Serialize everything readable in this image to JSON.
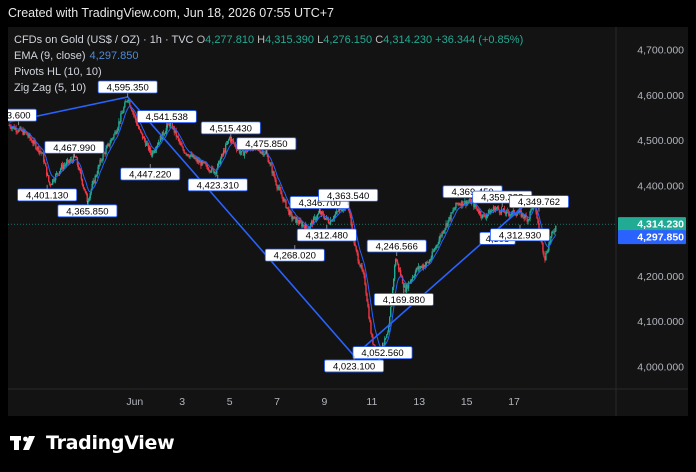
{
  "header": {
    "caption": "Created with TradingView.com, Jun 18, 2026 07:55 UTC+7"
  },
  "legend": {
    "symbol": "CFDs on Gold (US$ / OZ) · 1h · TVC",
    "o_label": "O",
    "o": "4,277.810",
    "h_label": "H",
    "h": "4,315.390",
    "l_label": "L",
    "l": "4,276.150",
    "c_label": "C",
    "c": "4,314.230",
    "change": "+36.344 (+0.85%)",
    "ema_label": "EMA (9, close)",
    "ema_value": "4,297.850",
    "pivots_label": "Pivots HL (10, 10)",
    "zigzag_label": "Zig Zag (5, 10)"
  },
  "brand": {
    "logo_text": "TradingView"
  },
  "colors": {
    "up": "#22ab94",
    "down": "#f23645",
    "ema": "#2962ff",
    "zigzag": "#2962ff",
    "background": "#131313",
    "label_bg": "#ffffff",
    "label_border": "#2962ff"
  },
  "chart_data": {
    "type": "candlestick",
    "ylim": [
      3950,
      4750
    ],
    "x_range_days": [
      -4.35,
      21.3
    ],
    "y_ticks": [
      {
        "value": 4700,
        "label": "4,700.000"
      },
      {
        "value": 4600,
        "label": "4,600.000"
      },
      {
        "value": 4500,
        "label": "4,500.000"
      },
      {
        "value": 4400,
        "label": "4,400.000"
      },
      {
        "value": 4300,
        "label": "4,300.000"
      },
      {
        "value": 4200,
        "label": "4,200.000"
      },
      {
        "value": 4100,
        "label": "4,100.000"
      },
      {
        "value": 4000,
        "label": "4,000.000"
      }
    ],
    "x_ticks": [
      {
        "day": 1,
        "label": "Jun"
      },
      {
        "day": 3,
        "label": "3"
      },
      {
        "day": 5,
        "label": "5"
      },
      {
        "day": 7,
        "label": "7"
      },
      {
        "day": 9,
        "label": "9"
      },
      {
        "day": 11,
        "label": "11"
      },
      {
        "day": 13,
        "label": "13"
      },
      {
        "day": 15,
        "label": "15"
      },
      {
        "day": 17,
        "label": "17"
      }
    ],
    "price_labels": [
      {
        "label": "4,314.230",
        "value": 4314.23,
        "color": "#22ab94"
      },
      {
        "label": "4,297.850",
        "value": 4297.85,
        "color": "#2962ff"
      }
    ],
    "zigzag": [
      {
        "day": -4.3,
        "value": 4540
      },
      {
        "day": 0.7,
        "value": 4595.35
      },
      {
        "day": 10.25,
        "value": 4023.1
      },
      {
        "day": 17.75,
        "value": 4370
      },
      {
        "day": 18.05,
        "value": 4349.762
      }
    ],
    "pivots": [
      {
        "label": "3.600",
        "day": -3.9,
        "value": 4533,
        "pos": "above"
      },
      {
        "label": "4,467.990",
        "day": -1.55,
        "value": 4462,
        "pos": "above"
      },
      {
        "label": "4,401.130",
        "day": -2.7,
        "value": 4401.13,
        "pos": "below"
      },
      {
        "label": "4,365.850",
        "day": -1.0,
        "value": 4365.85,
        "pos": "below"
      },
      {
        "label": "4,595.350",
        "day": 0.7,
        "value": 4595.35,
        "pos": "above"
      },
      {
        "label": "4,541.538",
        "day": 2.35,
        "value": 4530,
        "pos": "above"
      },
      {
        "label": "4,447.220",
        "day": 1.65,
        "value": 4447.22,
        "pos": "below"
      },
      {
        "label": "4,423.310",
        "day": 4.5,
        "value": 4423.31,
        "pos": "below"
      },
      {
        "label": "4,515.430",
        "day": 5.05,
        "value": 4505,
        "pos": "above"
      },
      {
        "label": "4,475.850",
        "day": 6.55,
        "value": 4470,
        "pos": "above"
      },
      {
        "label": "4,346.700",
        "day": 8.8,
        "value": 4340,
        "pos": "above"
      },
      {
        "label": "4,363.540",
        "day": 10.0,
        "value": 4356,
        "pos": "above"
      },
      {
        "label": "4,312.480",
        "day": 9.1,
        "value": 4312.48,
        "pos": "below"
      },
      {
        "label": "4,268.020",
        "day": 7.75,
        "value": 4268.02,
        "pos": "below"
      },
      {
        "label": "4,246.566",
        "day": 12.05,
        "value": 4244,
        "pos": "above"
      },
      {
        "label": "4,169.880",
        "day": 12.35,
        "value": 4169.88,
        "pos": "below"
      },
      {
        "label": "4,052.560",
        "day": 11.45,
        "value": 4052.56,
        "pos": "below"
      },
      {
        "label": "4,023.100",
        "day": 10.25,
        "value": 4023.1,
        "pos": "below"
      },
      {
        "label": "4,369.450",
        "day": 15.25,
        "value": 4364,
        "pos": "above"
      },
      {
        "label": "4,359.388",
        "day": 16.5,
        "value": 4352,
        "pos": "above"
      },
      {
        "label": "4,349.762",
        "day": 18.05,
        "value": 4342,
        "pos": "above"
      },
      {
        "label": "4,305",
        "day": 16.3,
        "value": 4305,
        "pos": "below"
      },
      {
        "label": "4,312.930",
        "day": 17.25,
        "value": 4312.93,
        "pos": "below"
      }
    ],
    "ohlc_anchors": [
      [
        -4.3,
        4533
      ],
      [
        -3.6,
        4515
      ],
      [
        -2.9,
        4470
      ],
      [
        -2.6,
        4401
      ],
      [
        -2.1,
        4440
      ],
      [
        -1.5,
        4462
      ],
      [
        -1.0,
        4366
      ],
      [
        -0.4,
        4460
      ],
      [
        0.2,
        4520
      ],
      [
        0.7,
        4595
      ],
      [
        1.2,
        4520
      ],
      [
        1.7,
        4470
      ],
      [
        2.2,
        4515
      ],
      [
        2.5,
        4540
      ],
      [
        3.0,
        4480
      ],
      [
        3.6,
        4455
      ],
      [
        4.4,
        4430
      ],
      [
        5.0,
        4505
      ],
      [
        5.5,
        4470
      ],
      [
        6.0,
        4485
      ],
      [
        6.55,
        4470
      ],
      [
        7.0,
        4400
      ],
      [
        7.6,
        4330
      ],
      [
        8.3,
        4305
      ],
      [
        8.8,
        4340
      ],
      [
        9.2,
        4320
      ],
      [
        9.7,
        4350
      ],
      [
        10.0,
        4356
      ],
      [
        10.3,
        4260
      ],
      [
        10.7,
        4190
      ],
      [
        11.0,
        4060
      ],
      [
        11.3,
        4023
      ],
      [
        11.7,
        4075
      ],
      [
        12.0,
        4240
      ],
      [
        12.4,
        4170
      ],
      [
        12.9,
        4215
      ],
      [
        13.4,
        4230
      ],
      [
        14.0,
        4300
      ],
      [
        14.6,
        4360
      ],
      [
        15.2,
        4364
      ],
      [
        15.7,
        4330
      ],
      [
        16.2,
        4350
      ],
      [
        16.7,
        4338
      ],
      [
        17.2,
        4340
      ],
      [
        17.6,
        4325
      ],
      [
        17.85,
        4370
      ],
      [
        18.05,
        4300
      ],
      [
        18.3,
        4240
      ],
      [
        18.55,
        4285
      ],
      [
        18.8,
        4314
      ]
    ]
  }
}
